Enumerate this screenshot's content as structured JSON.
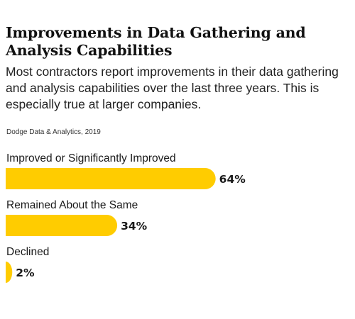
{
  "header": {
    "title": "Improvements in Data Gathering and Analysis Capabilities",
    "subtitle": "Most contractors report improvements in their data gathering and analysis capabilities over the last three years. This is especially true at larger companies.",
    "source": "Dodge Data & Analytics, 2019"
  },
  "colors": {
    "bar": "#FFCC00"
  },
  "chart_data": {
    "type": "bar",
    "orientation": "horizontal",
    "title": "Improvements in Data Gathering and Analysis Capabilities",
    "categories": [
      "Improved or Significantly Improved",
      "Remained About the Same",
      "Declined"
    ],
    "values": [
      64,
      34,
      2
    ],
    "value_labels": [
      "64%",
      "34%",
      "2%"
    ],
    "unit": "%",
    "xlim": [
      0,
      100
    ],
    "grid": false,
    "legend": "none"
  }
}
